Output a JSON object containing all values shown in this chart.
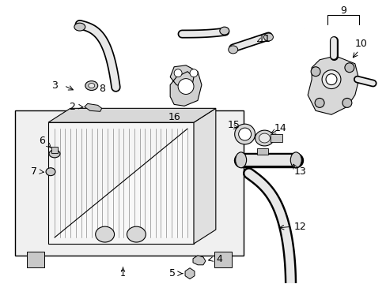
{
  "background_color": "#ffffff",
  "line_color": "#000000",
  "gray_fill": "#d8d8d8",
  "light_gray": "#eeeeee",
  "dark_gray": "#aaaaaa",
  "text_color": "#000000",
  "font_size": 8,
  "fig_width": 4.89,
  "fig_height": 3.6,
  "dpi": 100
}
